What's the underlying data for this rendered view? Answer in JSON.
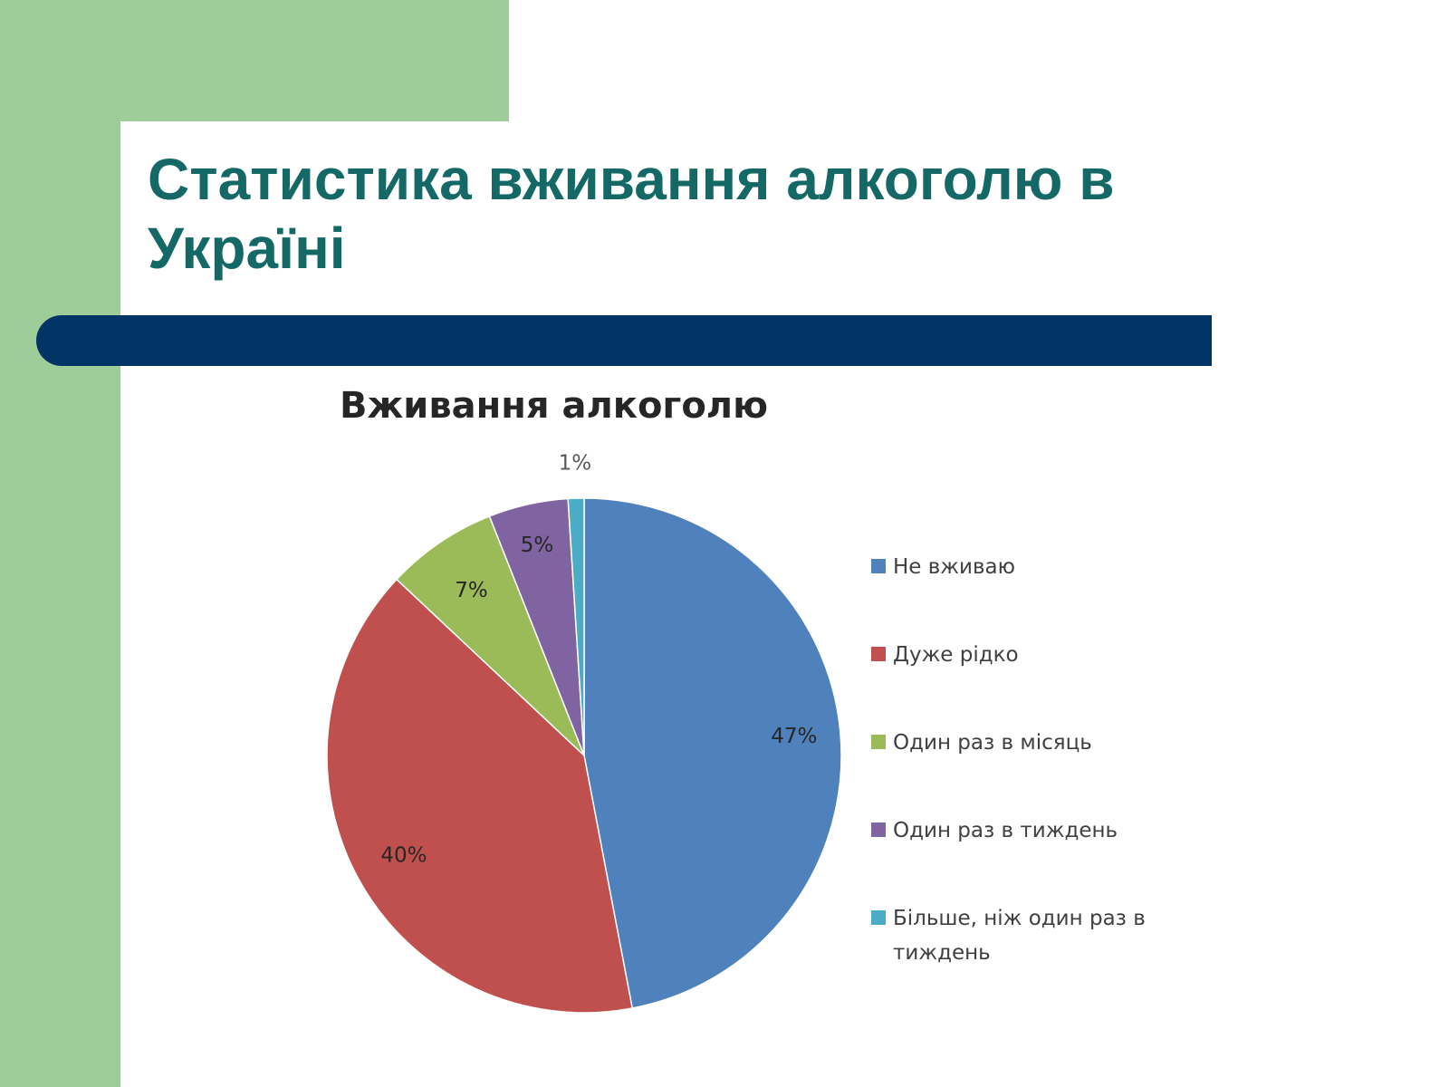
{
  "slide": {
    "title": "Статистика вживання алкоголю в Україні"
  },
  "colors": {
    "green_panel": "#9ecd9a",
    "title_teal": "#146866",
    "navy_bar": "#003366"
  },
  "chart_data": {
    "type": "pie",
    "title": "Вживання алкоголю",
    "legend_position": "right",
    "slices": [
      {
        "label": "Не вживаю",
        "value": 47,
        "display": "47%",
        "color": "#4f81bd"
      },
      {
        "label": "Дуже рідко",
        "value": 40,
        "display": "40%",
        "color": "#c0504d"
      },
      {
        "label": "Один раз в місяць",
        "value": 7,
        "display": "7%",
        "color": "#9bbb59"
      },
      {
        "label": "Один раз в тиждень",
        "value": 5,
        "display": "5%",
        "color": "#8064a2"
      },
      {
        "label": "Більше, ніж один раз в тиждень",
        "value": 1,
        "display": "1%",
        "color": "#4bacc6"
      }
    ]
  }
}
